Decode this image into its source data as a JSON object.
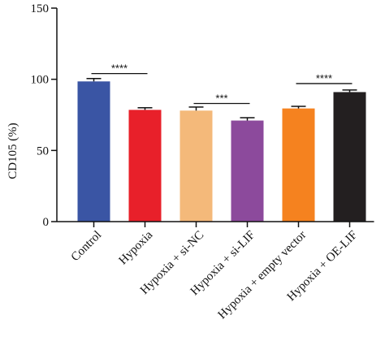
{
  "chart_data": {
    "type": "bar",
    "title": "",
    "xlabel": "",
    "ylabel": "CD105 (%)",
    "ylim": [
      0,
      150
    ],
    "yticks": [
      0,
      50,
      100,
      150
    ],
    "grid": false,
    "categories": [
      "Control",
      "Hypoxia",
      "Hypoxia + si-NC",
      "Hypoxia + si-LIF",
      "Hypoxia + empty vector",
      "Hypoxia + OE-LIF"
    ],
    "values": [
      98.5,
      78.5,
      78.0,
      71.0,
      79.5,
      91.0
    ],
    "errors": [
      2.0,
      1.5,
      2.5,
      2.0,
      1.5,
      1.5
    ],
    "colors": [
      "#3a55a4",
      "#e8202a",
      "#f4b97a",
      "#8c4a9c",
      "#f5821f",
      "#231f20"
    ],
    "significance": [
      {
        "from": 0,
        "to": 1,
        "y": 104,
        "label": "****"
      },
      {
        "from": 2,
        "to": 3,
        "y": 83,
        "label": "***"
      },
      {
        "from": 4,
        "to": 5,
        "y": 97,
        "label": "****"
      }
    ]
  }
}
